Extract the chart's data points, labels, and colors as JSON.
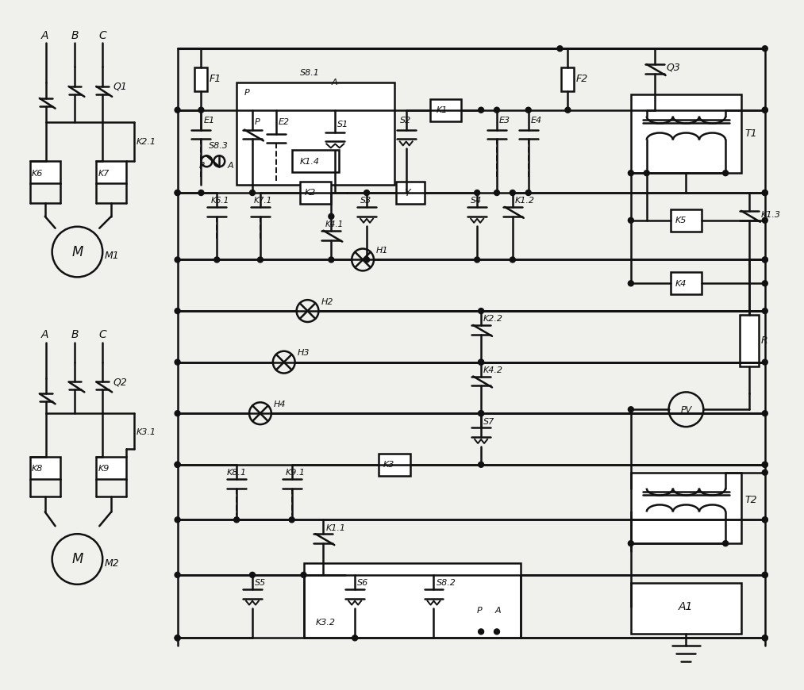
{
  "bg_color": "#f0f0ec",
  "line_color": "#111111",
  "lw": 1.8,
  "fig_w": 10.0,
  "fig_h": 8.56
}
